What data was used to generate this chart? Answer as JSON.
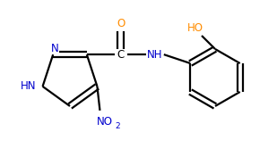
{
  "bg_color": "#ffffff",
  "line_color": "#000000",
  "atom_color_N": "#0000cd",
  "atom_color_O": "#ff8c00",
  "bond_width": 1.6,
  "figsize": [
    3.09,
    1.85
  ],
  "dpi": 100,
  "xlim": [
    0,
    309
  ],
  "ylim": [
    0,
    185
  ]
}
